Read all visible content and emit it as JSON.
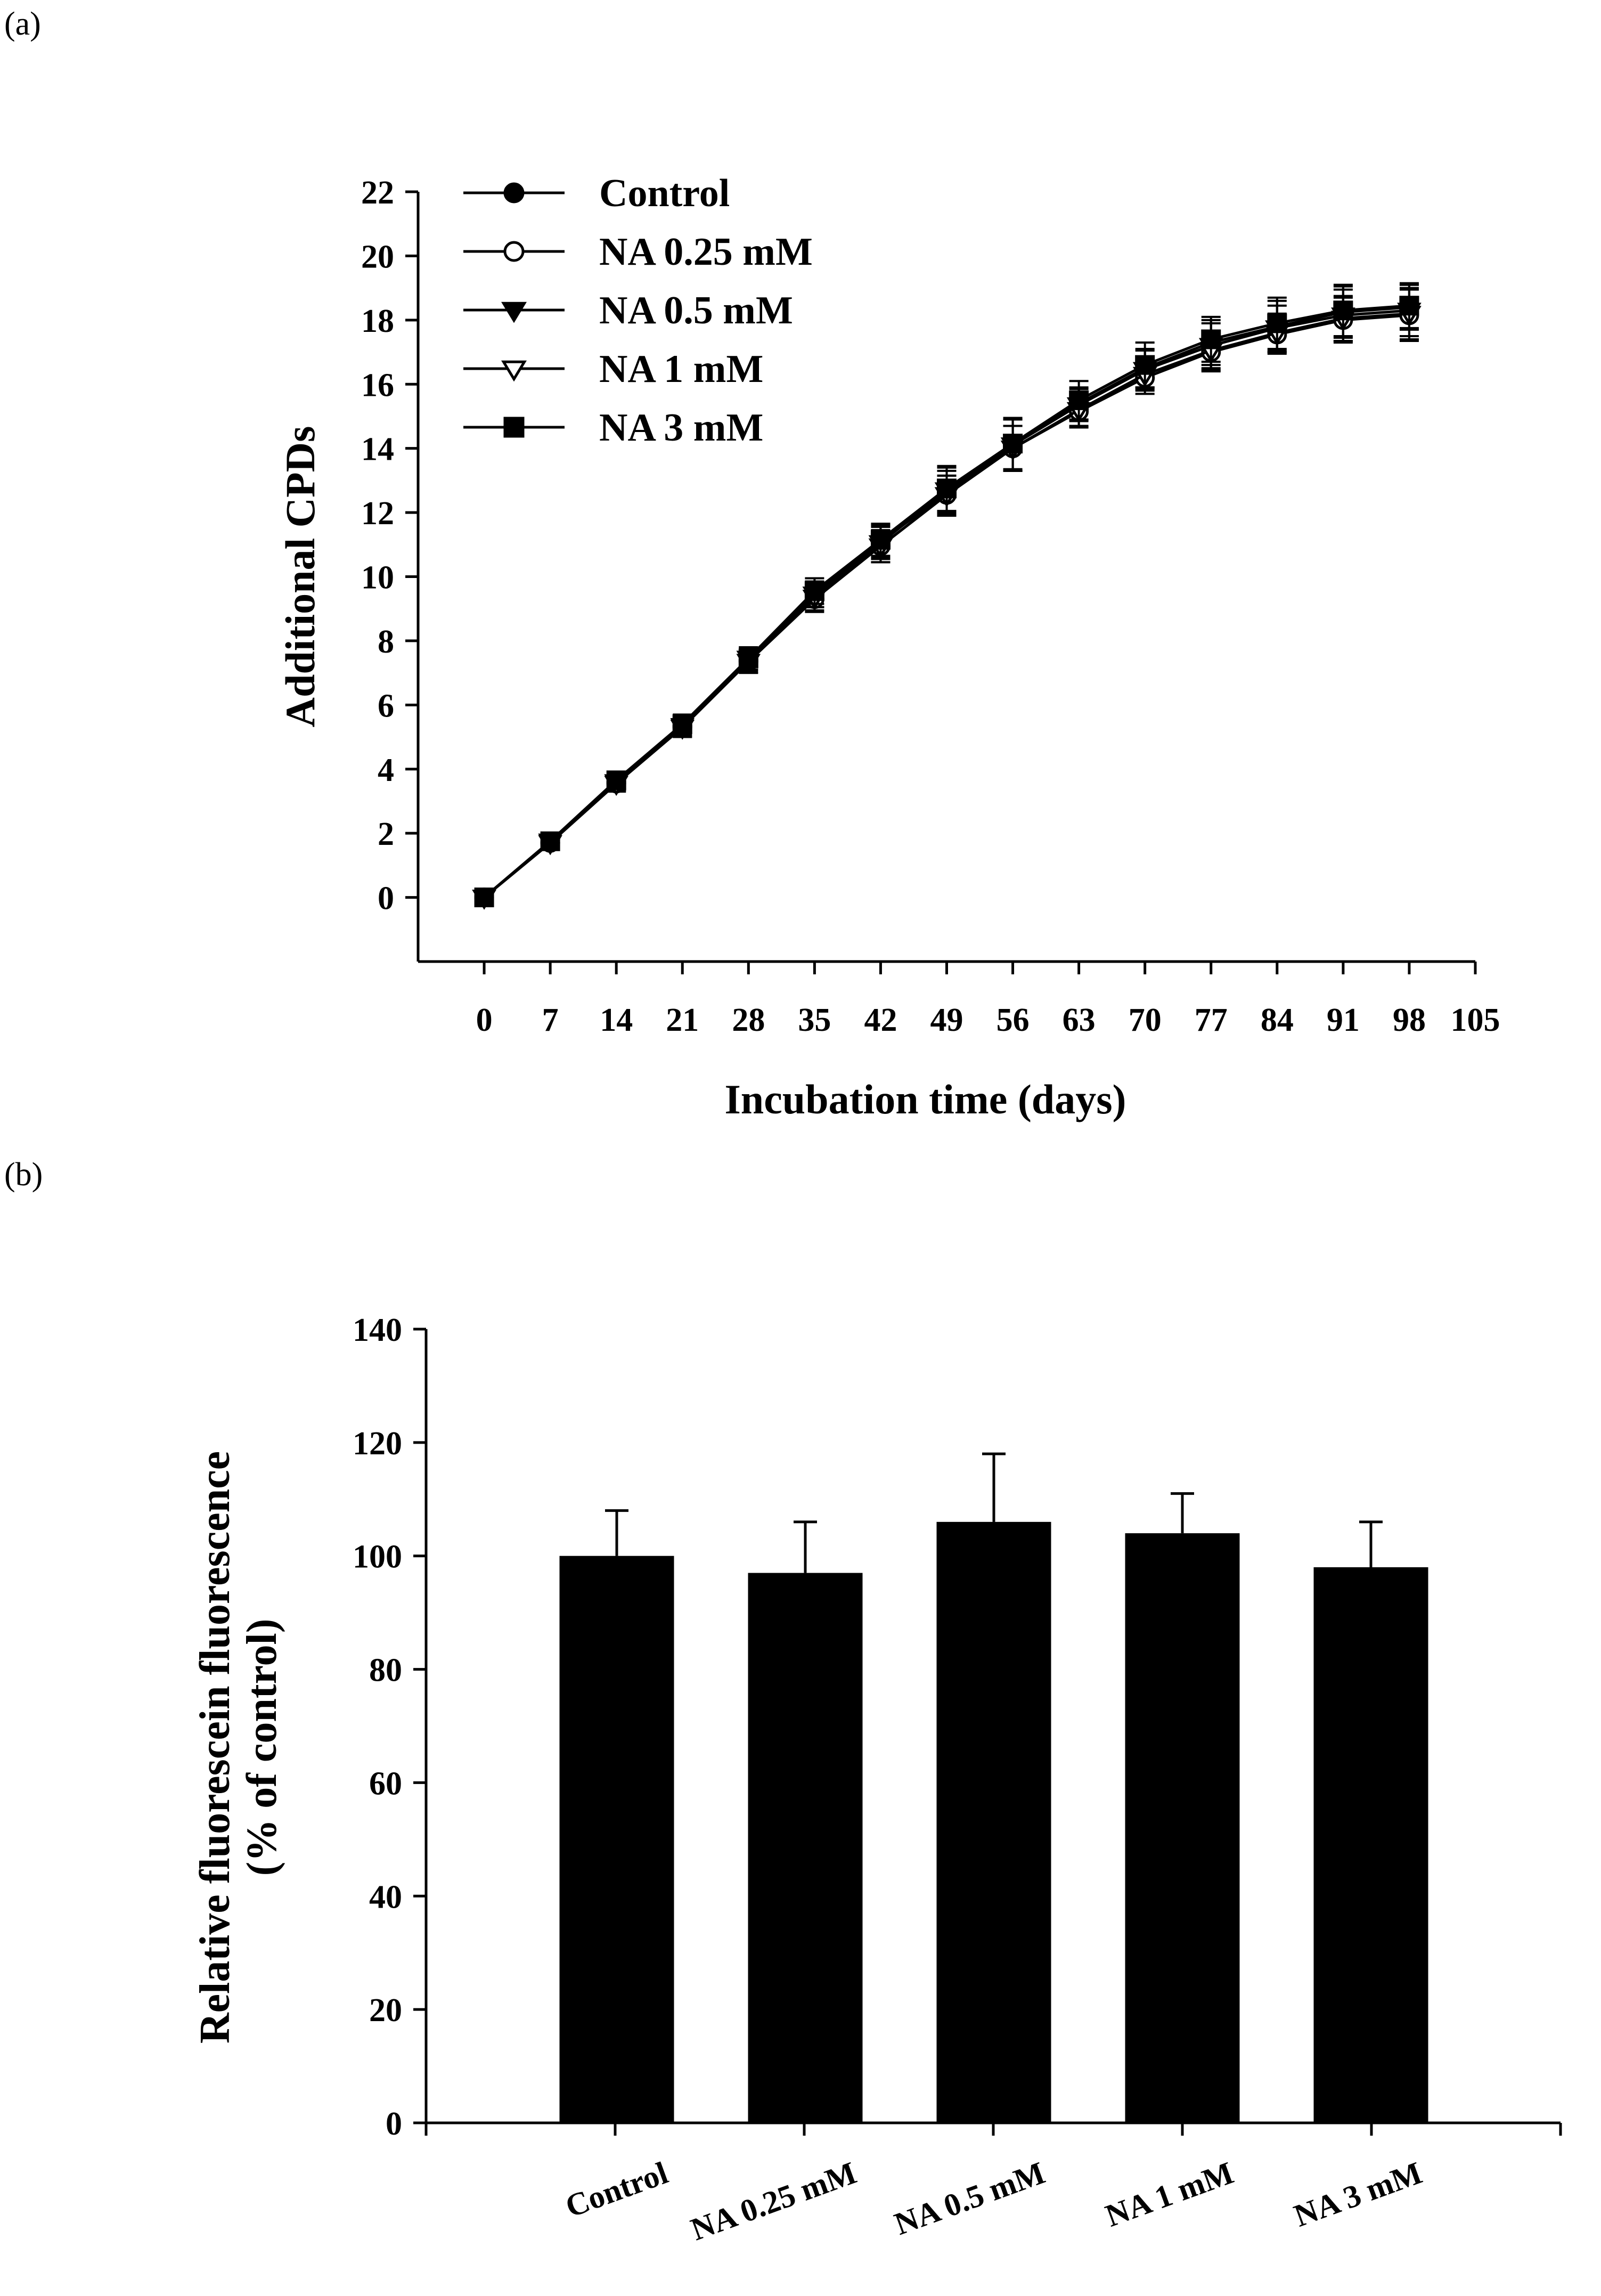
{
  "panels": {
    "a": "(a)",
    "b": "(b)"
  },
  "chart_data": [
    {
      "type": "line",
      "xlabel": "Incubation time (days)",
      "ylabel": "Additional CPDs",
      "xlim": [
        -7,
        105
      ],
      "ylim": [
        -2,
        22
      ],
      "xticks": [
        0,
        7,
        14,
        21,
        28,
        35,
        42,
        49,
        56,
        63,
        70,
        77,
        84,
        91,
        98,
        105
      ],
      "yticks": [
        0,
        2,
        4,
        6,
        8,
        10,
        12,
        14,
        16,
        18,
        20,
        22
      ],
      "legend_position": "top-left",
      "x": [
        0,
        7,
        14,
        21,
        28,
        35,
        42,
        49,
        56,
        63,
        70,
        77,
        84,
        91,
        98
      ],
      "series": [
        {
          "name": "Control",
          "marker": "circle-filled",
          "values": [
            0,
            1.7,
            3.6,
            5.35,
            7.4,
            9.45,
            11.1,
            12.6,
            14.1,
            15.4,
            16.5,
            17.3,
            17.8,
            18.25,
            18.4
          ],
          "errors": [
            0.15,
            0.2,
            0.25,
            0.3,
            0.35,
            0.4,
            0.5,
            0.7,
            0.8,
            0.5,
            0.6,
            0.7,
            0.8,
            0.8,
            0.7
          ]
        },
        {
          "name": "NA 0.25 mM",
          "marker": "circle-open",
          "values": [
            0,
            1.7,
            3.55,
            5.3,
            7.35,
            9.3,
            10.95,
            12.55,
            14.0,
            15.15,
            16.2,
            17.0,
            17.55,
            18.0,
            18.15
          ],
          "errors": [
            0.15,
            0.2,
            0.25,
            0.3,
            0.35,
            0.4,
            0.5,
            0.6,
            0.7,
            0.5,
            0.5,
            0.6,
            0.6,
            0.7,
            0.8
          ]
        },
        {
          "name": "NA 0.5 mM",
          "marker": "triangle-down-filled",
          "values": [
            0,
            1.75,
            3.6,
            5.35,
            7.45,
            9.45,
            11.05,
            12.7,
            14.1,
            15.35,
            16.45,
            17.2,
            17.75,
            18.15,
            18.3
          ],
          "errors": [
            0.15,
            0.2,
            0.25,
            0.3,
            0.35,
            0.4,
            0.5,
            0.7,
            0.8,
            0.5,
            0.6,
            0.7,
            0.7,
            0.8,
            0.8
          ]
        },
        {
          "name": "NA 1 mM",
          "marker": "triangle-down-open",
          "values": [
            0,
            1.7,
            3.55,
            5.3,
            7.35,
            9.35,
            10.95,
            12.55,
            14.0,
            15.2,
            16.3,
            17.05,
            17.6,
            18.05,
            18.2
          ],
          "errors": [
            0.15,
            0.2,
            0.25,
            0.3,
            0.35,
            0.4,
            0.5,
            0.6,
            0.7,
            0.5,
            0.5,
            0.6,
            0.6,
            0.7,
            0.8
          ]
        },
        {
          "name": "NA 3 mM",
          "marker": "square-filled",
          "values": [
            0,
            1.75,
            3.65,
            5.4,
            7.45,
            9.55,
            11.15,
            12.75,
            14.15,
            15.5,
            16.6,
            17.4,
            17.9,
            18.3,
            18.45
          ],
          "errors": [
            0.15,
            0.2,
            0.25,
            0.3,
            0.35,
            0.4,
            0.5,
            0.7,
            0.8,
            0.6,
            0.7,
            0.7,
            0.8,
            0.8,
            0.7
          ]
        }
      ]
    },
    {
      "type": "bar",
      "ylabel_lines": [
        "Relative fluorescein fluorescence",
        "(% of control)"
      ],
      "xlabel": "",
      "ylim": [
        0,
        140
      ],
      "yticks": [
        0,
        20,
        40,
        60,
        80,
        100,
        120,
        140
      ],
      "categories": [
        "Control",
        "NA 0.25 mM",
        "NA 0.5 mM",
        "NA 1 mM",
        "NA 3 mM"
      ],
      "values": [
        100,
        97,
        106,
        104,
        98
      ],
      "errors": [
        8,
        9,
        12,
        7,
        8
      ],
      "bar_color": "#000000"
    }
  ]
}
